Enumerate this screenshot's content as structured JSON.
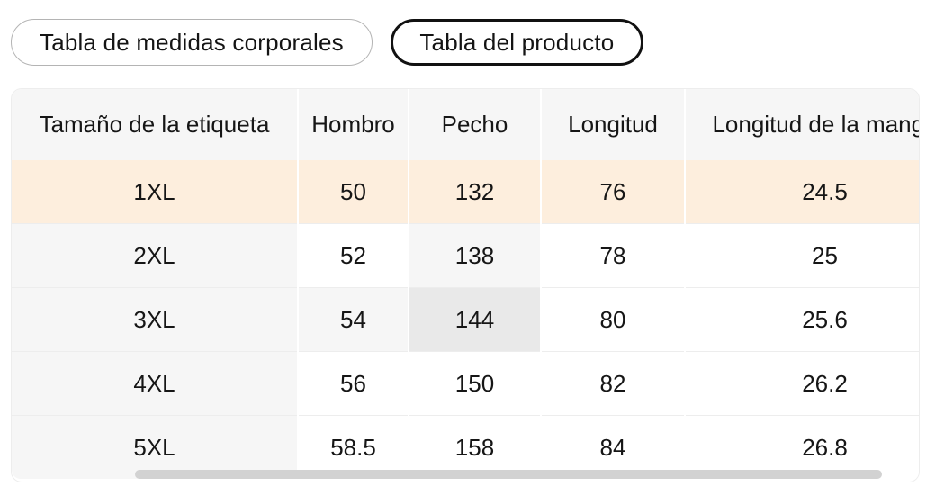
{
  "tabs": [
    {
      "label": "Tabla de medidas corporales",
      "selected": false
    },
    {
      "label": "Tabla del producto",
      "selected": true
    }
  ],
  "table": {
    "columns": [
      "Tamaño de la etiqueta",
      "Hombro",
      "Pecho",
      "Longitud",
      "Longitud de la manga"
    ],
    "rows": [
      {
        "size": "1XL",
        "values": [
          "50",
          "132",
          "76",
          "24.5"
        ]
      },
      {
        "size": "2XL",
        "values": [
          "52",
          "138",
          "78",
          "25"
        ]
      },
      {
        "size": "3XL",
        "values": [
          "54",
          "144",
          "80",
          "25.6"
        ]
      },
      {
        "size": "4XL",
        "values": [
          "56",
          "150",
          "82",
          "26.2"
        ]
      },
      {
        "size": "5XL",
        "values": [
          "58.5",
          "158",
          "84",
          "26.8"
        ]
      }
    ],
    "highlights": {
      "selected_row_index": 0,
      "hover": {
        "row": 2,
        "col": 2
      }
    }
  },
  "colors": {
    "header_background": "#f6f6f6",
    "selected_row_background": "#fdeedd",
    "hover_path_background": "#f6f6f6",
    "hover_cell_background": "#e9e9e9",
    "row_divider": "#ededed",
    "tab_border": "#b4b4b4",
    "selected_tab_border": "#111111",
    "scrollbar_thumb": "#d2d2d2",
    "text": "#141414"
  }
}
